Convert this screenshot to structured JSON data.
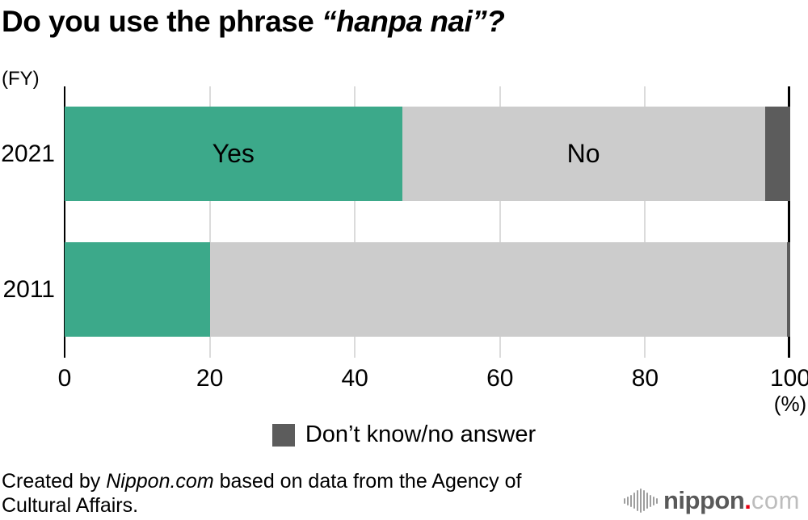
{
  "title": {
    "prefix": "Do you use the phrase ",
    "emphasis": "“hanpa nai”?"
  },
  "fy_unit": "(FY)",
  "pct_unit": "(%)",
  "chart_data": {
    "type": "bar",
    "orientation": "horizontal",
    "stacked": true,
    "title": "Do you use the phrase “hanpa nai”?",
    "xlabel": "(%)",
    "ylabel": "(FY)",
    "xlim": [
      0,
      100
    ],
    "x_ticks": [
      "0",
      "20",
      "40",
      "60",
      "80",
      "100"
    ],
    "grid": "vertical gridlines at 20, 40, 60, 80",
    "segment_keys": [
      "yes",
      "no",
      "dont_know"
    ],
    "segment_names": [
      "Yes",
      "No",
      "Don’t know/no answer"
    ],
    "categories": [
      "2021",
      "2011"
    ],
    "series": [
      {
        "category": "2021",
        "values": [
          46.5,
          50.0,
          3.5
        ],
        "bar_labels": [
          "Yes",
          "No",
          ""
        ]
      },
      {
        "category": "2011",
        "values": [
          20.0,
          79.5,
          0.5
        ],
        "bar_labels": [
          "",
          "",
          ""
        ]
      }
    ]
  },
  "colors": {
    "yes": "#3CA98A",
    "no": "#CCCCCC",
    "dont_know": "#5C5C5C",
    "grid": "#DBDBDB",
    "axis": "#000000",
    "logo_red": "#E60012"
  },
  "legend": {
    "label": "Don’t know/no answer"
  },
  "footer": {
    "credit_prefix": "Created by ",
    "credit_brand": "Nippon.com",
    "credit_suffix_line1": " based on data from the Agency of",
    "credit_line2": "Cultural Affairs."
  },
  "logo": {
    "word": "nippon",
    "dot": ".",
    "tld": "com"
  }
}
